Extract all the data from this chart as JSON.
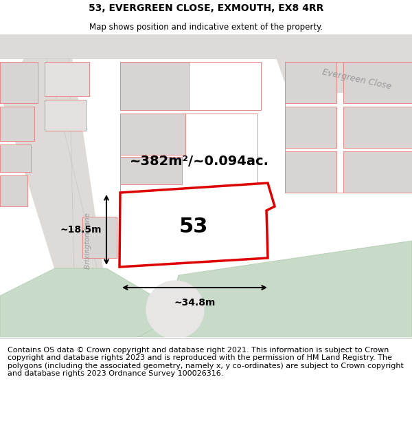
{
  "title": "53, EVERGREEN CLOSE, EXMOUTH, EX8 4RR",
  "subtitle": "Map shows position and indicative extent of the property.",
  "footer": "Contains OS data © Crown copyright and database right 2021. This information is subject to Crown copyright and database rights 2023 and is reproduced with the permission of HM Land Registry. The polygons (including the associated geometry, namely x, y co-ordinates) are subject to Crown copyright and database rights 2023 Ordnance Survey 100026316.",
  "map_bg": "#f2efef",
  "plot_fill": "#ffffff",
  "plot_edge": "#dd0000",
  "plot_label": "53",
  "area_label": "~382m²/~0.094ac.",
  "dim_h": "~18.5m",
  "dim_w": "~34.8m",
  "street_label": "Brixington Lane",
  "evergreen_label": "Evergreen Close",
  "green_color": "#c8dbc8",
  "grey_color": "#d8d4d4",
  "building_fill": "#d8d4d4",
  "road_fill": "#e0dcdc",
  "line_red": "#e88888",
  "title_fontsize": 10,
  "subtitle_fontsize": 8.5,
  "footer_fontsize": 8
}
